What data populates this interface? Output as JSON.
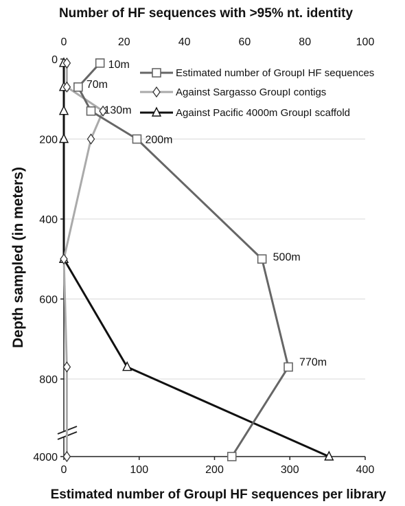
{
  "chart_data": {
    "type": "line",
    "title": "",
    "top_axis": {
      "label": "Number of HF sequences with >95% nt. identity",
      "range": [
        0,
        100
      ],
      "ticks": [
        0,
        20,
        40,
        60,
        80,
        100
      ]
    },
    "bottom_axis": {
      "label": "Estimated number of GroupI HF sequences per library",
      "range": [
        0,
        400
      ],
      "ticks": [
        0,
        100,
        200,
        300,
        400
      ]
    },
    "y_axis": {
      "label": "Depth sampled (in meters)",
      "range": [
        0,
        4000
      ],
      "reversed": true,
      "axis_break": "between 800 and 4000",
      "ticks": [
        0,
        200,
        400,
        600,
        800,
        4000
      ]
    },
    "grid": true,
    "legend_position": "top-right",
    "series": [
      {
        "name": "Estimated number of GroupI HF sequences",
        "axis": "bottom",
        "marker": "square",
        "color": "#666666",
        "points": [
          {
            "depth": 10,
            "value": 48,
            "label": "10m"
          },
          {
            "depth": 70,
            "value": 19,
            "label": "70m"
          },
          {
            "depth": 130,
            "value": 36,
            "label": "130m"
          },
          {
            "depth": 200,
            "value": 97,
            "label": "200m"
          },
          {
            "depth": 500,
            "value": 263,
            "label": "500m"
          },
          {
            "depth": 770,
            "value": 298,
            "label": "770m"
          },
          {
            "depth": 4000,
            "value": 223,
            "label": ""
          }
        ]
      },
      {
        "name": "Against Sargasso GroupI contigs",
        "axis": "top",
        "marker": "diamond",
        "color": "#aaaaaa",
        "points": [
          {
            "depth": 10,
            "value": 1
          },
          {
            "depth": 70,
            "value": 1
          },
          {
            "depth": 130,
            "value": 13
          },
          {
            "depth": 200,
            "value": 9
          },
          {
            "depth": 500,
            "value": 0
          },
          {
            "depth": 770,
            "value": 1
          },
          {
            "depth": 4000,
            "value": 1
          }
        ]
      },
      {
        "name": "Against Pacific 4000m GroupI scaffold",
        "axis": "top",
        "marker": "triangle",
        "color": "#111111",
        "points": [
          {
            "depth": 10,
            "value": 0
          },
          {
            "depth": 70,
            "value": 0
          },
          {
            "depth": 130,
            "value": 0
          },
          {
            "depth": 200,
            "value": 0
          },
          {
            "depth": 500,
            "value": 0
          },
          {
            "depth": 770,
            "value": 21
          },
          {
            "depth": 4000,
            "value": 88
          }
        ]
      }
    ]
  }
}
